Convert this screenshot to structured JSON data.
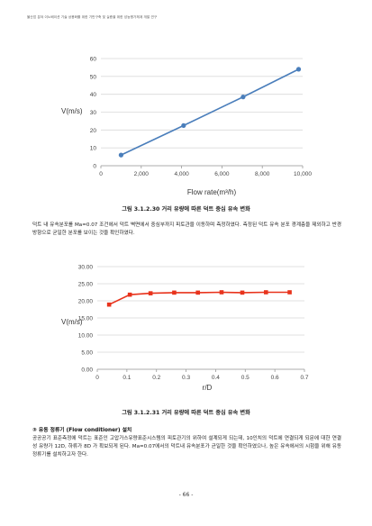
{
  "header": "물산업 분야 이노베이션 기술 상용화를 위한 기반구축 및 실증을 위한 성능평가체계 개발 연구",
  "chart_data": [
    {
      "type": "line",
      "xlabel": "Flow rate(m³/h)",
      "ylabel": "V(m/s)",
      "xlim": [
        0,
        10000
      ],
      "ylim": [
        0,
        60
      ],
      "xticks": [
        "0",
        "2,000",
        "4,000",
        "6,000",
        "8,000",
        "10,000"
      ],
      "yticks": [
        "0",
        "10",
        "20",
        "30",
        "40",
        "50",
        "60"
      ],
      "grid": "horizontal",
      "color": "#4a7ebb",
      "x": [
        1000,
        4100,
        7050,
        9800
      ],
      "y": [
        6,
        22.5,
        38.5,
        54
      ]
    },
    {
      "type": "line",
      "xlabel": "r/D",
      "ylabel": "V(m/s)",
      "xlim": [
        0,
        0.7
      ],
      "ylim": [
        0,
        30
      ],
      "xticks": [
        "0",
        "0.1",
        "0.2",
        "0.3",
        "0.4",
        "0.5",
        "0.6",
        "0.7"
      ],
      "yticks": [
        "0.00",
        "5.00",
        "10.00",
        "15.00",
        "20.00",
        "25.00",
        "30.00"
      ],
      "grid": "horizontal",
      "color": "#e8331c",
      "x": [
        0.04,
        0.11,
        0.18,
        0.26,
        0.34,
        0.42,
        0.49,
        0.57,
        0.65
      ],
      "y": [
        18.9,
        21.8,
        22.2,
        22.4,
        22.4,
        22.5,
        22.4,
        22.5,
        22.5
      ]
    }
  ],
  "caption1": "그림 3.1.2.30 거리 유량에 따른 덕트 중심 유속 변화",
  "paragraph1": "덕트 내 유속분포를 Ma=0.07 조건에서 덕트 벽면에서 중심부까지 피토관을 이동하며 측정하였다. 측정된 덕트 유속 분포 경계층을 제외하고 반경방향으로 균일한 분포를 보이는 것을 확인하였다.",
  "caption2": "그림 3.1.2.31 거리 유량에 따른 덕트 중심 유속 변화",
  "section_title": "③ 유동 정류기 (Flow conditioner) 설치",
  "paragraph2": "공공공기 표준측정에 덕트는 표준인 고압가스유량표준시스템의 피토관기의 위하여 설계되게 되는데, 10인치의 덕트에 연결되게 되문에 대한 연결 성 유량가 12D, 하류가 8D 가 확보되게 된다. Ma=0.07에서의 덕트내 유속분포가 균일한 것을 확인하였으나, 높은 유속에서의 시험을 위해 유동 정류기를 설치하고자 한다.",
  "page_number": "- 66 -"
}
